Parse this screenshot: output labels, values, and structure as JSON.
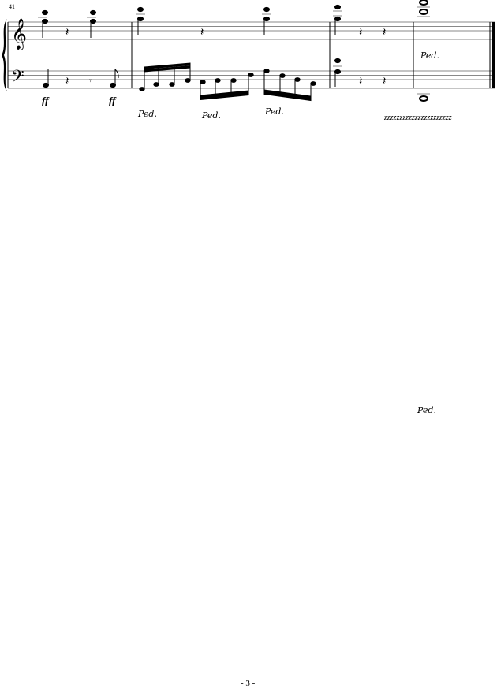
{
  "score": {
    "measure_number": "41",
    "dynamics": [
      "ff",
      "ff"
    ],
    "pedal_marks": [
      "Ped.",
      "Ped.",
      "Ped.",
      "Ped.",
      "Ped."
    ],
    "trill_line": "zzzzzzzzzzzzzzzzzzzzzz",
    "clefs": [
      "treble-clef",
      "bass-clef"
    ]
  },
  "footer": {
    "page_number": "- 3 -"
  }
}
